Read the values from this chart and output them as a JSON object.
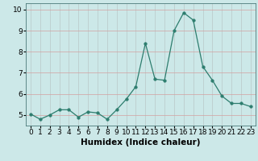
{
  "x": [
    0,
    1,
    2,
    3,
    4,
    5,
    6,
    7,
    8,
    9,
    10,
    11,
    12,
    13,
    14,
    15,
    16,
    17,
    18,
    19,
    20,
    21,
    22,
    23
  ],
  "y": [
    5.05,
    4.8,
    5.0,
    5.25,
    5.25,
    4.9,
    5.15,
    5.1,
    4.8,
    5.25,
    5.75,
    6.35,
    8.4,
    6.7,
    6.65,
    9.0,
    9.85,
    9.5,
    7.3,
    6.65,
    5.9,
    5.55,
    5.55,
    5.4
  ],
  "line_color": "#2d7d6e",
  "marker": "o",
  "marker_size": 2.5,
  "bg_color": "#cce8e8",
  "grid_color": "#b8c8c8",
  "grid_color_h": "#d4a0a0",
  "xlabel": "Humidex (Indice chaleur)",
  "xlim": [
    -0.5,
    23.5
  ],
  "ylim": [
    4.5,
    10.3
  ],
  "yticks": [
    5,
    6,
    7,
    8,
    9,
    10
  ],
  "xlabel_fontsize": 7.5,
  "tick_fontsize": 6.5
}
